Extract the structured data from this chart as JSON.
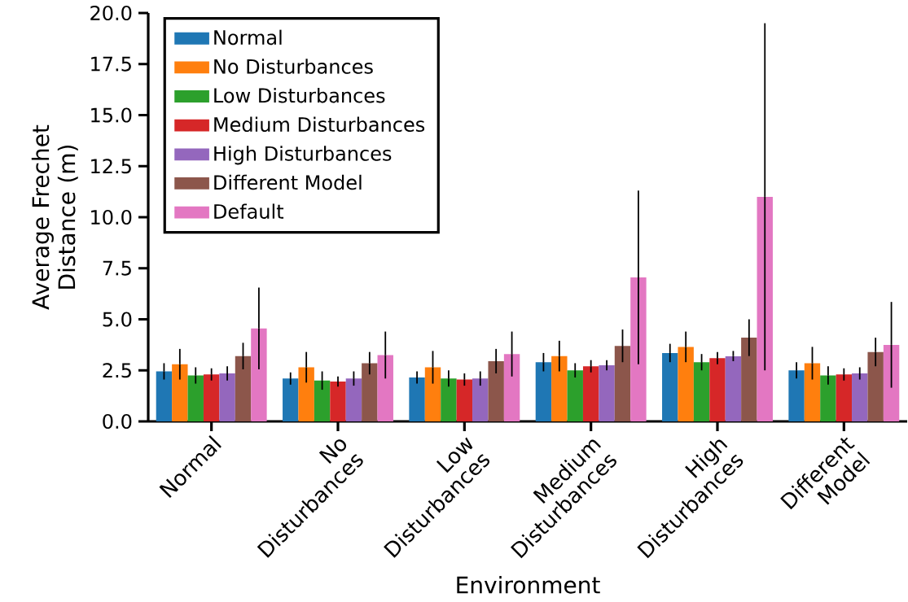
{
  "chart_data": {
    "type": "bar",
    "xlabel": "Environment",
    "ylabel": "Average Frechet Distance (m)",
    "categories": [
      "Normal",
      "No Disturbances",
      "Low Disturbances",
      "Medium Disturbances",
      "High Disturbances",
      "Different Model"
    ],
    "series": [
      {
        "name": "Normal",
        "color": "#1f77b4",
        "values": [
          2.45,
          2.1,
          2.15,
          2.9,
          3.35,
          2.5
        ],
        "errors": [
          0.4,
          0.3,
          0.3,
          0.45,
          0.45,
          0.4
        ]
      },
      {
        "name": "No Disturbances",
        "color": "#ff7f0e",
        "values": [
          2.8,
          2.65,
          2.65,
          3.2,
          3.65,
          2.85
        ],
        "errors": [
          0.75,
          0.75,
          0.8,
          0.75,
          0.75,
          0.8
        ]
      },
      {
        "name": "Low Disturbances",
        "color": "#2ca02c",
        "values": [
          2.25,
          2.0,
          2.1,
          2.5,
          2.9,
          2.25
        ],
        "errors": [
          0.4,
          0.45,
          0.4,
          0.35,
          0.4,
          0.45
        ]
      },
      {
        "name": "Medium Disturbances",
        "color": "#d62728",
        "values": [
          2.3,
          1.95,
          2.05,
          2.7,
          3.1,
          2.3
        ],
        "errors": [
          0.3,
          0.25,
          0.3,
          0.3,
          0.3,
          0.3
        ]
      },
      {
        "name": "High Disturbances",
        "color": "#9467bd",
        "values": [
          2.35,
          2.1,
          2.1,
          2.75,
          3.2,
          2.35
        ],
        "errors": [
          0.35,
          0.35,
          0.35,
          0.25,
          0.25,
          0.3
        ]
      },
      {
        "name": "Different Model",
        "color": "#8c564b",
        "values": [
          3.2,
          2.85,
          2.95,
          3.7,
          4.1,
          3.4
        ],
        "errors": [
          0.65,
          0.55,
          0.6,
          0.8,
          0.9,
          0.7
        ]
      },
      {
        "name": "Default",
        "color": "#e377c2",
        "values": [
          4.55,
          3.25,
          3.3,
          7.05,
          11.0,
          3.75
        ],
        "errors": [
          2.0,
          1.15,
          1.1,
          4.25,
          8.5,
          2.1
        ]
      }
    ],
    "ylim": [
      0,
      20
    ],
    "yticks": [
      {
        "value": 0,
        "label": "0.0"
      },
      {
        "value": 2.5,
        "label": "2.5"
      },
      {
        "value": 5,
        "label": "5.0"
      },
      {
        "value": 7.5,
        "label": "7.5"
      },
      {
        "value": 10,
        "label": "10.0"
      },
      {
        "value": 12.5,
        "label": "12.5"
      },
      {
        "value": 15,
        "label": "15.0"
      },
      {
        "value": 17.5,
        "label": "17.5"
      },
      {
        "value": 20,
        "label": "20.0"
      }
    ],
    "legend": "top left"
  }
}
